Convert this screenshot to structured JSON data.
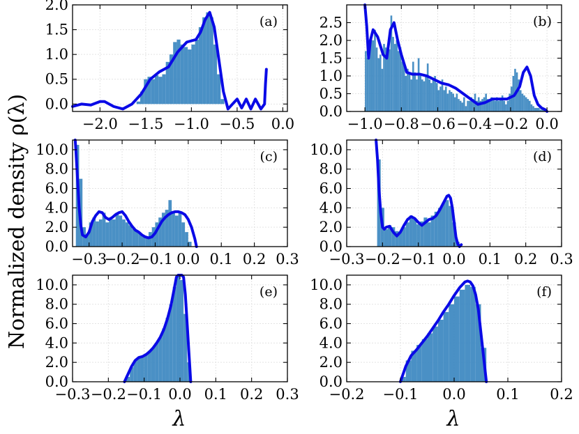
{
  "figure": {
    "ylabel": "Normalized density ρ(λ)",
    "xlabel": "λ"
  },
  "chart_data": [
    {
      "panel": "(a)",
      "type": "bar",
      "xlim": [
        -2.3,
        0.05
      ],
      "ylim": [
        -0.15,
        2.0
      ],
      "xticks": [
        -2.0,
        -1.5,
        -1.0,
        -0.5,
        0.0
      ],
      "xtick_labels": [
        "−2.0",
        "−1.5",
        "−1.0",
        "−0.5",
        "0.0"
      ],
      "yticks": [
        0.0,
        0.5,
        1.0,
        1.5,
        2.0
      ],
      "ytick_labels": [
        "0.0",
        "0.5",
        "1.0",
        "1.5",
        "2.0"
      ],
      "hist": {
        "x": [
          -1.58,
          -1.54,
          -1.5,
          -1.46,
          -1.42,
          -1.38,
          -1.34,
          -1.3,
          -1.26,
          -1.22,
          -1.18,
          -1.14,
          -1.1,
          -1.06,
          -1.02,
          -0.98,
          -0.94,
          -0.9,
          -0.86,
          -0.82,
          -0.78,
          -0.74,
          -0.7,
          -0.66
        ],
        "y": [
          0.05,
          0.25,
          0.5,
          0.55,
          0.5,
          0.58,
          0.55,
          0.6,
          0.85,
          1.0,
          1.25,
          1.3,
          1.2,
          1.15,
          1.1,
          1.2,
          1.3,
          1.55,
          1.75,
          1.85,
          1.75,
          1.2,
          0.6,
          0.1
        ]
      },
      "kde": {
        "x": [
          -2.3,
          -2.2,
          -2.1,
          -2.0,
          -1.95,
          -1.85,
          -1.75,
          -1.65,
          -1.55,
          -1.45,
          -1.35,
          -1.25,
          -1.15,
          -1.05,
          -0.95,
          -0.9,
          -0.85,
          -0.8,
          -0.75,
          -0.7,
          -0.65,
          -0.6,
          -0.55,
          -0.5,
          -0.45,
          -0.4,
          -0.35,
          -0.3,
          -0.27,
          -0.24,
          -0.22,
          -0.2,
          -0.19,
          -0.18
        ],
        "y": [
          -0.05,
          0.0,
          -0.02,
          0.05,
          0.05,
          -0.05,
          -0.1,
          0.0,
          0.2,
          0.5,
          0.65,
          0.75,
          1.05,
          1.25,
          1.3,
          1.45,
          1.7,
          1.85,
          1.55,
          0.9,
          0.25,
          -0.1,
          0.0,
          0.1,
          -0.08,
          0.1,
          -0.1,
          0.1,
          0.0,
          -0.1,
          -0.05,
          0.0,
          0.4,
          0.7
        ]
      }
    },
    {
      "panel": "(b)",
      "type": "bar",
      "xlim": [
        -1.1,
        0.08
      ],
      "ylim": [
        0.0,
        3.0
      ],
      "xticks": [
        -1.0,
        -0.8,
        -0.6,
        -0.4,
        -0.2,
        0.0
      ],
      "xtick_labels": [
        "−1.0",
        "−0.8",
        "−0.6",
        "−0.4",
        "−0.2",
        "0.0"
      ],
      "yticks": [
        0.0,
        0.5,
        1.0,
        1.5,
        2.0,
        2.5
      ],
      "ytick_labels": [
        "0.0",
        "0.5",
        "1.0",
        "1.5",
        "2.0",
        "2.5"
      ],
      "hist": {
        "x": [
          -0.995,
          -0.985,
          -0.975,
          -0.965,
          -0.955,
          -0.945,
          -0.935,
          -0.925,
          -0.915,
          -0.905,
          -0.895,
          -0.885,
          -0.875,
          -0.865,
          -0.855,
          -0.845,
          -0.835,
          -0.825,
          -0.815,
          -0.805,
          -0.795,
          -0.785,
          -0.775,
          -0.765,
          -0.755,
          -0.745,
          -0.735,
          -0.725,
          -0.715,
          -0.705,
          -0.695,
          -0.685,
          -0.675,
          -0.665,
          -0.655,
          -0.645,
          -0.635,
          -0.625,
          -0.615,
          -0.605,
          -0.595,
          -0.585,
          -0.575,
          -0.565,
          -0.555,
          -0.545,
          -0.535,
          -0.525,
          -0.515,
          -0.505,
          -0.495,
          -0.485,
          -0.475,
          -0.465,
          -0.455,
          -0.445,
          -0.435,
          -0.425,
          -0.415,
          -0.405,
          -0.395,
          -0.385,
          -0.375,
          -0.365,
          -0.355,
          -0.345,
          -0.335,
          -0.325,
          -0.315,
          -0.305,
          -0.295,
          -0.285,
          -0.275,
          -0.265,
          -0.255,
          -0.245,
          -0.235,
          -0.225,
          -0.215,
          -0.205,
          -0.195,
          -0.185,
          -0.175,
          -0.165,
          -0.155,
          -0.145,
          -0.135,
          -0.125,
          -0.115,
          -0.105,
          -0.095,
          -0.085,
          -0.075,
          -0.065,
          -0.055,
          -0.045,
          -0.035,
          -0.025,
          -0.015,
          -0.005
        ],
        "y": [
          1.7,
          1.5,
          1.9,
          2.1,
          2.0,
          2.3,
          1.8,
          1.5,
          1.6,
          1.2,
          1.9,
          1.8,
          1.6,
          1.75,
          2.7,
          2.1,
          1.9,
          2.0,
          1.7,
          1.8,
          1.4,
          1.3,
          1.0,
          1.2,
          1.1,
          0.9,
          1.4,
          1.1,
          0.9,
          1.5,
          1.0,
          0.9,
          0.85,
          1.0,
          1.35,
          0.9,
          0.8,
          0.9,
          1.0,
          0.8,
          0.6,
          0.7,
          0.9,
          0.6,
          0.7,
          0.5,
          0.6,
          0.55,
          0.5,
          0.4,
          0.5,
          0.35,
          0.3,
          0.25,
          0.4,
          0.15,
          0.3,
          0.3,
          0.4,
          0.35,
          0.5,
          0.3,
          0.4,
          0.3,
          0.35,
          0.4,
          0.5,
          0.35,
          0.3,
          0.4,
          0.35,
          0.3,
          0.4,
          0.3,
          0.35,
          0.45,
          0.3,
          0.2,
          0.3,
          0.5,
          0.7,
          1.0,
          1.2,
          1.1,
          0.9,
          0.6,
          0.5,
          0.45,
          0.4,
          0.35,
          0.3,
          0.2,
          0.15,
          0.1,
          0.1,
          0.1,
          0.05,
          0.05,
          0.05,
          0.05
        ]
      },
      "kde": {
        "x": [
          -1.0,
          -0.99,
          -0.98,
          -0.97,
          -0.955,
          -0.93,
          -0.9,
          -0.88,
          -0.86,
          -0.84,
          -0.82,
          -0.8,
          -0.77,
          -0.74,
          -0.7,
          -0.66,
          -0.62,
          -0.58,
          -0.54,
          -0.5,
          -0.46,
          -0.42,
          -0.38,
          -0.34,
          -0.3,
          -0.26,
          -0.22,
          -0.18,
          -0.15,
          -0.13,
          -0.11,
          -0.09,
          -0.07,
          -0.05,
          -0.03,
          -0.01,
          0.0
        ],
        "y": [
          3.0,
          2.4,
          1.5,
          2.0,
          2.3,
          2.1,
          1.6,
          1.5,
          2.3,
          2.5,
          2.0,
          1.6,
          1.1,
          1.05,
          1.05,
          1.0,
          0.9,
          0.8,
          0.75,
          0.65,
          0.5,
          0.35,
          0.2,
          0.25,
          0.35,
          0.35,
          0.35,
          0.45,
          0.7,
          1.1,
          1.25,
          1.0,
          0.45,
          0.2,
          0.1,
          0.05,
          0.0
        ]
      }
    },
    {
      "panel": "(c)",
      "type": "bar",
      "xlim": [
        -0.35,
        0.3
      ],
      "ylim": [
        0.0,
        11.0
      ],
      "xticks": [
        -0.3,
        -0.2,
        -0.1,
        0.0,
        0.1,
        0.2,
        0.3
      ],
      "xtick_labels": [
        "−0.3",
        "−0.2",
        "−0.1",
        "0.0",
        "0.1",
        "0.2",
        "0.3"
      ],
      "yticks": [
        0.0,
        2.0,
        4.0,
        6.0,
        8.0,
        10.0
      ],
      "ytick_labels": [
        "0.0",
        "2.0",
        "4.0",
        "6.0",
        "8.0",
        "10.0"
      ],
      "hist": {
        "x": [
          -0.335,
          -0.325,
          -0.315,
          -0.305,
          -0.295,
          -0.285,
          -0.275,
          -0.265,
          -0.255,
          -0.245,
          -0.235,
          -0.225,
          -0.215,
          -0.205,
          -0.195,
          -0.185,
          -0.175,
          -0.165,
          -0.155,
          -0.145,
          -0.135,
          -0.125,
          -0.115,
          -0.105,
          -0.095,
          -0.085,
          -0.075,
          -0.065,
          -0.055,
          -0.045,
          -0.035,
          -0.025,
          -0.015,
          -0.005,
          0.005
        ],
        "y": [
          10.5,
          7.0,
          2.0,
          1.2,
          2.5,
          3.0,
          2.6,
          2.8,
          3.5,
          2.5,
          3.0,
          2.8,
          3.5,
          3.2,
          2.8,
          2.5,
          2.2,
          1.8,
          1.6,
          1.4,
          1.0,
          0.9,
          1.5,
          2.0,
          2.5,
          3.0,
          3.5,
          3.8,
          4.8,
          3.5,
          3.2,
          3.5,
          2.5,
          1.5,
          0.5
        ]
      },
      "kde": {
        "x": [
          -0.342,
          -0.34,
          -0.335,
          -0.33,
          -0.325,
          -0.32,
          -0.31,
          -0.3,
          -0.29,
          -0.28,
          -0.27,
          -0.26,
          -0.25,
          -0.24,
          -0.23,
          -0.22,
          -0.21,
          -0.2,
          -0.19,
          -0.18,
          -0.17,
          -0.16,
          -0.15,
          -0.14,
          -0.13,
          -0.12,
          -0.11,
          -0.1,
          -0.09,
          -0.08,
          -0.07,
          -0.06,
          -0.05,
          -0.04,
          -0.03,
          -0.02,
          -0.01,
          0.0,
          0.01,
          0.02,
          0.025
        ],
        "y": [
          11.0,
          10.0,
          7.0,
          4.0,
          2.2,
          1.2,
          1.0,
          1.5,
          2.6,
          3.2,
          3.6,
          3.5,
          3.0,
          2.8,
          3.0,
          3.3,
          3.5,
          3.6,
          3.2,
          2.6,
          2.1,
          1.7,
          1.5,
          1.2,
          1.0,
          0.9,
          1.0,
          1.4,
          2.0,
          2.6,
          3.0,
          3.3,
          3.5,
          3.6,
          3.6,
          3.5,
          3.3,
          2.8,
          2.0,
          0.8,
          0.0
        ]
      }
    },
    {
      "panel": "(d)",
      "type": "bar",
      "xlim": [
        -0.3,
        0.3
      ],
      "ylim": [
        0.0,
        11.0
      ],
      "xticks": [
        -0.3,
        -0.2,
        -0.1,
        0.0,
        0.1,
        0.2,
        0.3
      ],
      "xtick_labels": [
        "−0.3",
        "−0.2",
        "−0.1",
        "0.0",
        "0.1",
        "0.2",
        "0.3"
      ],
      "yticks": [
        0.0,
        2.0,
        4.0,
        6.0,
        8.0,
        10.0
      ],
      "ytick_labels": [
        "0.0",
        "2.0",
        "4.0",
        "6.0",
        "8.0",
        "10.0"
      ],
      "hist": {
        "x": [
          -0.21,
          -0.2,
          -0.19,
          -0.18,
          -0.17,
          -0.16,
          -0.15,
          -0.14,
          -0.13,
          -0.12,
          -0.11,
          -0.1,
          -0.09,
          -0.08,
          -0.07,
          -0.06,
          -0.05,
          -0.04,
          -0.03,
          -0.02,
          -0.01,
          0.0,
          0.01
        ],
        "y": [
          9.0,
          4.0,
          1.8,
          2.2,
          2.0,
          1.6,
          1.5,
          2.0,
          2.5,
          3.2,
          2.8,
          2.3,
          2.6,
          3.0,
          2.5,
          3.2,
          3.6,
          4.0,
          4.5,
          4.8,
          4.2,
          2.5,
          0.5
        ]
      },
      "kde": {
        "x": [
          -0.218,
          -0.214,
          -0.21,
          -0.205,
          -0.2,
          -0.195,
          -0.19,
          -0.18,
          -0.17,
          -0.16,
          -0.15,
          -0.14,
          -0.13,
          -0.12,
          -0.11,
          -0.1,
          -0.09,
          -0.08,
          -0.07,
          -0.06,
          -0.05,
          -0.04,
          -0.03,
          -0.02,
          -0.015,
          -0.01,
          -0.005,
          0.0,
          0.005,
          0.01,
          0.015,
          0.02
        ],
        "y": [
          11.0,
          9.0,
          6.0,
          3.5,
          2.0,
          1.8,
          2.0,
          2.1,
          1.5,
          1.1,
          1.5,
          2.2,
          2.8,
          3.1,
          2.9,
          2.5,
          2.2,
          2.5,
          2.8,
          2.9,
          3.2,
          3.8,
          4.5,
          5.2,
          5.3,
          5.0,
          4.0,
          2.5,
          1.0,
          0.3,
          0.0,
          0.2
        ]
      }
    },
    {
      "panel": "(e)",
      "type": "bar",
      "xlim": [
        -0.3,
        0.3
      ],
      "ylim": [
        0.0,
        11.0
      ],
      "xticks": [
        -0.3,
        -0.2,
        -0.1,
        0.0,
        0.1,
        0.2,
        0.3
      ],
      "xtick_labels": [
        "−0.3",
        "−0.2",
        "−0.1",
        "0.0",
        "0.1",
        "0.2",
        "0.3"
      ],
      "yticks": [
        0.0,
        2.0,
        4.0,
        6.0,
        8.0,
        10.0
      ],
      "ytick_labels": [
        "0.0",
        "2.0",
        "4.0",
        "6.0",
        "8.0",
        "10.0"
      ],
      "hist": {
        "x": [
          -0.145,
          -0.135,
          -0.125,
          -0.115,
          -0.105,
          -0.095,
          -0.085,
          -0.075,
          -0.065,
          -0.055,
          -0.045,
          -0.035,
          -0.025,
          -0.015,
          -0.005,
          0.005,
          0.015,
          0.025
        ],
        "y": [
          0.5,
          1.5,
          2.2,
          2.5,
          2.6,
          2.8,
          3.2,
          3.5,
          4.0,
          4.6,
          5.5,
          6.6,
          8.0,
          9.8,
          11.0,
          10.5,
          7.0,
          2.0
        ]
      },
      "kde": {
        "x": [
          -0.155,
          -0.145,
          -0.135,
          -0.125,
          -0.115,
          -0.105,
          -0.095,
          -0.085,
          -0.075,
          -0.065,
          -0.055,
          -0.045,
          -0.035,
          -0.025,
          -0.015,
          -0.01,
          -0.005,
          0.0,
          0.005,
          0.01,
          0.015,
          0.02,
          0.025,
          0.03
        ],
        "y": [
          0.0,
          0.8,
          1.6,
          2.2,
          2.5,
          2.6,
          2.8,
          3.1,
          3.5,
          4.0,
          4.6,
          5.4,
          6.5,
          7.9,
          9.8,
          10.8,
          11.0,
          11.0,
          11.0,
          10.8,
          9.0,
          6.0,
          3.0,
          0.0
        ]
      }
    },
    {
      "panel": "(f)",
      "type": "bar",
      "xlim": [
        -0.2,
        0.2
      ],
      "ylim": [
        0.0,
        11.0
      ],
      "xticks": [
        -0.2,
        -0.1,
        0.0,
        0.1,
        0.2
      ],
      "xtick_labels": [
        "−0.2",
        "−0.1",
        "0.0",
        "0.1",
        "0.2"
      ],
      "yticks": [
        0.0,
        2.0,
        4.0,
        6.0,
        8.0,
        10.0
      ],
      "ytick_labels": [
        "0.0",
        "2.0",
        "4.0",
        "6.0",
        "8.0",
        "10.0"
      ],
      "hist": {
        "x": [
          -0.095,
          -0.085,
          -0.075,
          -0.065,
          -0.055,
          -0.045,
          -0.035,
          -0.025,
          -0.015,
          -0.005,
          0.005,
          0.015,
          0.025,
          0.035,
          0.045,
          0.055
        ],
        "y": [
          0.5,
          2.2,
          3.2,
          3.8,
          4.4,
          5.0,
          5.7,
          6.4,
          7.2,
          8.0,
          8.8,
          9.5,
          10.0,
          9.8,
          8.0,
          3.5
        ]
      },
      "kde": {
        "x": [
          -0.1,
          -0.095,
          -0.09,
          -0.08,
          -0.07,
          -0.06,
          -0.05,
          -0.04,
          -0.03,
          -0.02,
          -0.01,
          0.0,
          0.01,
          0.02,
          0.025,
          0.03,
          0.035,
          0.04,
          0.045,
          0.05,
          0.055,
          0.06
        ],
        "y": [
          0.0,
          0.8,
          1.6,
          2.7,
          3.3,
          4.0,
          4.7,
          5.5,
          6.3,
          7.2,
          8.0,
          8.9,
          9.7,
          10.3,
          10.4,
          10.3,
          9.9,
          9.0,
          7.5,
          5.0,
          2.5,
          0.0
        ]
      }
    }
  ]
}
